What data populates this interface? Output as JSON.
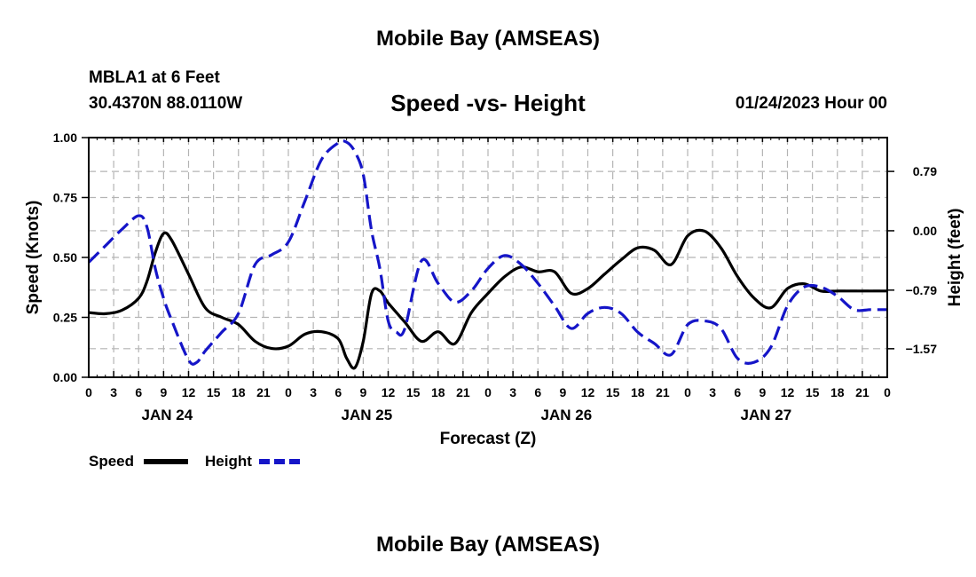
{
  "header": {
    "title": "Mobile Bay (AMSEAS)",
    "station": "MBLA1 at 6 Feet",
    "coords": "30.4370N  88.0110W",
    "subtitle": "Speed -vs- Height",
    "datetime": "01/24/2023 Hour 00",
    "footer_title": "Mobile Bay (AMSEAS)"
  },
  "legend": {
    "speed_label": "Speed",
    "height_label": "Height"
  },
  "colors": {
    "speed": "#000000",
    "height": "#1515c8",
    "grid": "#b4b4b4"
  },
  "chart_data": {
    "type": "line",
    "title": "Speed -vs- Height",
    "xlabel": "Forecast (Z)",
    "ylabel": "Speed (Knots)",
    "y2label": "Height (feet)",
    "x_range_hours": [
      0,
      96
    ],
    "x_tick_labels": [
      "0",
      "3",
      "6",
      "9",
      "12",
      "15",
      "18",
      "21",
      "0",
      "3",
      "6",
      "9",
      "12",
      "15",
      "18",
      "21",
      "0",
      "3",
      "6",
      "9",
      "12",
      "15",
      "18",
      "21",
      "0",
      "3",
      "6",
      "9",
      "12",
      "15",
      "18",
      "21",
      "0"
    ],
    "day_labels": [
      {
        "hour": 9,
        "label": "JAN 24"
      },
      {
        "hour": 33,
        "label": "JAN 25"
      },
      {
        "hour": 57,
        "label": "JAN 26"
      },
      {
        "hour": 81,
        "label": "JAN 27"
      }
    ],
    "ylim": [
      0,
      1.0
    ],
    "y_ticks": [
      0,
      0.25,
      0.5,
      0.75,
      1.0
    ],
    "y_tick_labels": [
      "0.00",
      "0.25",
      "0.50",
      "0.75",
      "1.00"
    ],
    "y2lim": [
      -1.95,
      1.24
    ],
    "y2_ticks": [
      -1.57,
      -0.79,
      0.0,
      0.79
    ],
    "y2_tick_labels": [
      "−1.57",
      "−0.79",
      "0.00",
      "0.79"
    ],
    "series": [
      {
        "name": "Speed",
        "axis": "left",
        "style": "solid",
        "x": [
          0,
          2,
          4,
          6,
          7,
          8,
          9,
          10,
          12,
          14,
          16,
          18,
          20,
          22,
          24,
          26,
          28,
          30,
          31,
          32,
          33,
          34,
          35,
          36,
          38,
          40,
          42,
          44,
          46,
          48,
          50,
          52,
          54,
          56,
          58,
          60,
          62,
          64,
          66,
          68,
          70,
          72,
          74,
          76,
          78,
          80,
          82,
          84,
          86,
          88,
          90,
          92,
          94,
          96
        ],
        "y": [
          0.27,
          0.265,
          0.28,
          0.33,
          0.4,
          0.52,
          0.6,
          0.57,
          0.43,
          0.29,
          0.25,
          0.22,
          0.15,
          0.12,
          0.13,
          0.18,
          0.19,
          0.16,
          0.08,
          0.04,
          0.15,
          0.35,
          0.36,
          0.31,
          0.23,
          0.15,
          0.19,
          0.14,
          0.27,
          0.35,
          0.42,
          0.46,
          0.44,
          0.44,
          0.35,
          0.37,
          0.43,
          0.49,
          0.54,
          0.53,
          0.47,
          0.59,
          0.61,
          0.54,
          0.42,
          0.33,
          0.29,
          0.37,
          0.39,
          0.36,
          0.36,
          0.36,
          0.36,
          0.36
        ]
      },
      {
        "name": "Height",
        "axis": "right",
        "style": "dashed",
        "x": [
          0,
          2,
          4,
          6,
          7,
          8,
          9,
          10,
          12,
          13,
          14,
          16,
          18,
          20,
          22,
          24,
          26,
          28,
          30,
          31,
          32,
          33,
          34,
          35,
          36,
          37,
          38,
          40,
          42,
          44,
          46,
          48,
          50,
          52,
          54,
          56,
          58,
          60,
          62,
          64,
          66,
          68,
          70,
          72,
          74,
          76,
          78,
          80,
          82,
          84,
          86,
          88,
          90,
          92,
          94,
          96
        ],
        "y": [
          -0.42,
          -0.2,
          0.02,
          0.2,
          0.05,
          -0.5,
          -0.9,
          -1.2,
          -1.72,
          -1.75,
          -1.6,
          -1.35,
          -1.1,
          -0.45,
          -0.32,
          -0.15,
          0.4,
          0.95,
          1.17,
          1.18,
          1.05,
          0.75,
          0.0,
          -0.5,
          -1.2,
          -1.35,
          -1.3,
          -0.4,
          -0.7,
          -0.95,
          -0.8,
          -0.5,
          -0.33,
          -0.45,
          -0.7,
          -1.0,
          -1.3,
          -1.1,
          -1.02,
          -1.1,
          -1.35,
          -1.5,
          -1.65,
          -1.25,
          -1.2,
          -1.3,
          -1.7,
          -1.75,
          -1.55,
          -1.0,
          -0.75,
          -0.75,
          -0.87,
          -1.05,
          -1.05,
          -1.05
        ]
      }
    ]
  }
}
